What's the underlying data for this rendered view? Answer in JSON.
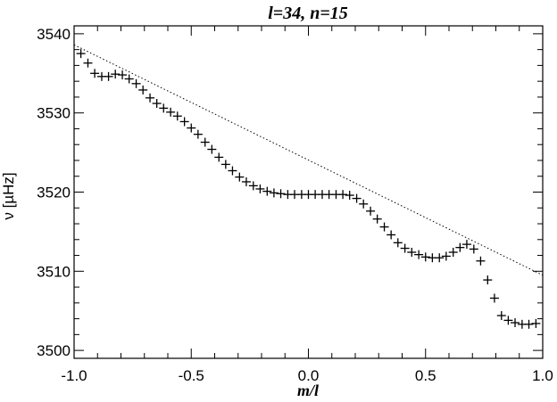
{
  "chart_data": {
    "type": "scatter",
    "title": "l=34, n=15",
    "xlabel": "m/l",
    "ylabel": "ν [µHz]",
    "xlim": [
      -1.0,
      1.0
    ],
    "ylim": [
      3499,
      3541
    ],
    "x_ticks": [
      "-1.0",
      "-0.5",
      "0.0",
      "0.5",
      "1.0"
    ],
    "y_ticks": [
      "3500",
      "3510",
      "3520",
      "3530",
      "3540"
    ],
    "grid": false,
    "legend": "none",
    "series": [
      {
        "marker": "plus",
        "x": [
          -0.971,
          -0.941,
          -0.912,
          -0.882,
          -0.853,
          -0.824,
          -0.794,
          -0.765,
          -0.735,
          -0.706,
          -0.676,
          -0.647,
          -0.618,
          -0.588,
          -0.559,
          -0.529,
          -0.5,
          -0.471,
          -0.441,
          -0.412,
          -0.382,
          -0.353,
          -0.324,
          -0.294,
          -0.265,
          -0.235,
          -0.206,
          -0.176,
          -0.147,
          -0.118,
          -0.088,
          -0.059,
          -0.029,
          0.0,
          0.029,
          0.059,
          0.088,
          0.118,
          0.147,
          0.176,
          0.206,
          0.235,
          0.265,
          0.294,
          0.324,
          0.353,
          0.382,
          0.412,
          0.441,
          0.471,
          0.5,
          0.529,
          0.559,
          0.588,
          0.618,
          0.647,
          0.676,
          0.706,
          0.735,
          0.765,
          0.794,
          0.824,
          0.853,
          0.882,
          0.912,
          0.941,
          0.971
        ],
        "y": [
          3537.5,
          3536.3,
          3535.0,
          3534.6,
          3534.6,
          3534.9,
          3534.8,
          3534.3,
          3533.7,
          3532.9,
          3531.9,
          3531.2,
          3530.6,
          3530.1,
          3529.6,
          3528.9,
          3528.1,
          3527.3,
          3526.3,
          3525.4,
          3524.4,
          3523.5,
          3522.7,
          3521.9,
          3521.3,
          3520.8,
          3520.4,
          3520.1,
          3519.9,
          3519.8,
          3519.7,
          3519.7,
          3519.7,
          3519.7,
          3519.7,
          3519.7,
          3519.7,
          3519.7,
          3519.7,
          3519.6,
          3519.2,
          3518.5,
          3517.6,
          3516.6,
          3515.6,
          3514.6,
          3513.6,
          3512.9,
          3512.4,
          3512.1,
          3511.8,
          3511.7,
          3511.7,
          3511.9,
          3512.4,
          3513.0,
          3513.4,
          3512.8,
          3511.3,
          3508.9,
          3506.6,
          3504.4,
          3503.8,
          3503.5,
          3503.3,
          3503.3,
          3503.4
        ]
      },
      {
        "style": "dotted-line",
        "x": [
          -1.0,
          1.0
        ],
        "y": [
          3538.6,
          3509.5
        ]
      }
    ]
  }
}
